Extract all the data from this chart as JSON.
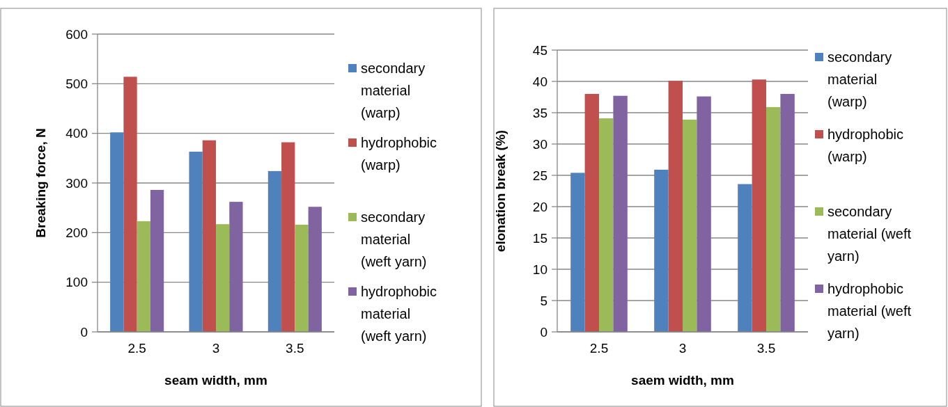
{
  "chart_data": [
    {
      "type": "bar",
      "xlabel": "seam width, mm",
      "ylabel": "Breaking force, N",
      "categories": [
        "2.5",
        "3",
        "3.5"
      ],
      "ylim": [
        0,
        600
      ],
      "yticks": [
        0,
        100,
        200,
        300,
        400,
        500,
        600
      ],
      "grid": "y",
      "legend": "right",
      "series": [
        {
          "name": "secondary material (warp)",
          "color": "#4f81bd",
          "values": [
            402,
            363,
            324
          ]
        },
        {
          "name": "hydrophobic (warp)",
          "color": "#c0504d",
          "values": [
            514,
            386,
            382
          ]
        },
        {
          "name": "secondary material (weft yarn)",
          "color": "#9bbb59",
          "values": [
            223,
            217,
            216
          ]
        },
        {
          "name": "hydrophobic material (weft yarn)",
          "color": "#8064a2",
          "values": [
            286,
            262,
            252
          ]
        }
      ]
    },
    {
      "type": "bar",
      "xlabel": "saem width, mm",
      "ylabel": "elonation break (%)",
      "categories": [
        "2.5",
        "3",
        "3.5"
      ],
      "ylim": [
        0,
        45
      ],
      "yticks": [
        0,
        5,
        10,
        15,
        20,
        25,
        30,
        35,
        40,
        45
      ],
      "grid": "y",
      "legend": "right",
      "series": [
        {
          "name": "secondary material (warp)",
          "color": "#4f81bd",
          "values": [
            25.4,
            25.9,
            23.6
          ]
        },
        {
          "name": "hydrophobic (warp)",
          "color": "#c0504d",
          "values": [
            38.0,
            40.1,
            40.3
          ]
        },
        {
          "name": "secondary material (weft yarn)",
          "color": "#9bbb59",
          "values": [
            34.1,
            33.9,
            35.9
          ]
        },
        {
          "name": "hydrophobic material (weft yarn)",
          "color": "#8064a2",
          "values": [
            37.7,
            37.6,
            38.0
          ]
        }
      ]
    }
  ]
}
